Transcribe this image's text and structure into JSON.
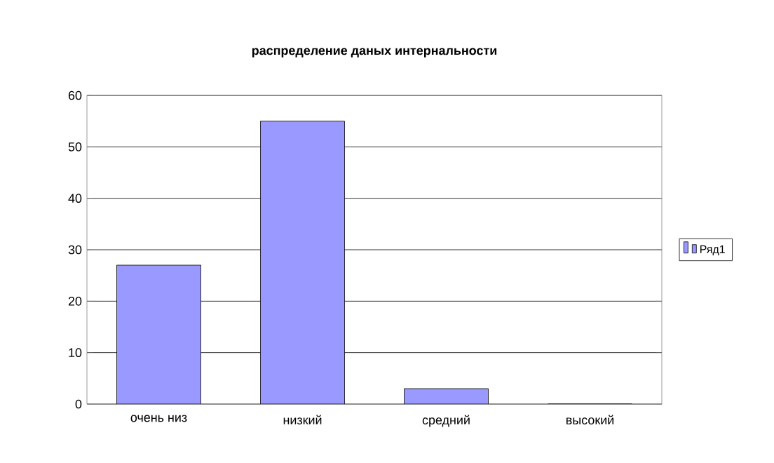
{
  "chart_data": {
    "type": "bar",
    "title": "**распределение даных интернальности**",
    "categories": [
      "очень низ",
      "низкий",
      "средний",
      "высокий"
    ],
    "series": [
      {
        "name": "Ряд1",
        "color": "#9999ff",
        "values": [
          27,
          55,
          3,
          0
        ]
      }
    ],
    "ylim": [
      0,
      60
    ],
    "yticks": [
      0,
      10,
      20,
      30,
      40,
      50,
      60
    ],
    "grid": "y",
    "legend": "right"
  }
}
